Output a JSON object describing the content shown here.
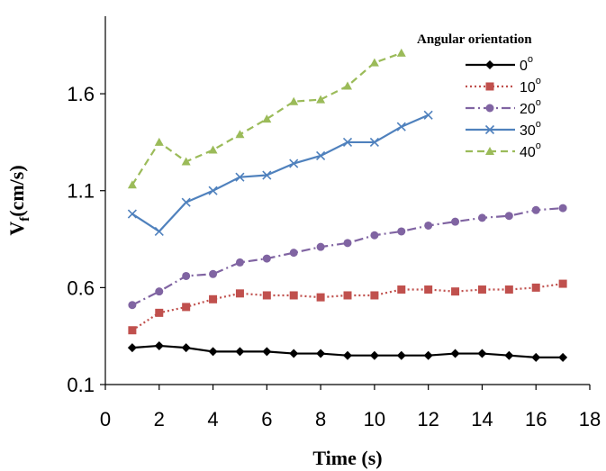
{
  "chart_data": {
    "type": "line",
    "title": "",
    "xlabel": "Time (s)",
    "ylabel": "V",
    "ylabel_subscript": "f",
    "ylabel_unit": "(cm/s)",
    "xlim": [
      0,
      18
    ],
    "ylim": [
      0.1,
      2.0
    ],
    "xticks": [
      0,
      2,
      4,
      6,
      8,
      10,
      12,
      14,
      16,
      18
    ],
    "yticks": [
      0.1,
      0.6,
      1.1,
      1.6
    ],
    "ytick_labels": [
      "0.1",
      "0.6",
      "1.1",
      "1.6"
    ],
    "grid": false,
    "legend": {
      "title": "Angular orientation",
      "position": "top-right",
      "degree_symbol": "o"
    },
    "series": [
      {
        "name": "0",
        "color": "#000000",
        "line_style": "solid",
        "marker": "diamond",
        "x": [
          1,
          2,
          3,
          4,
          5,
          6,
          7,
          8,
          9,
          10,
          11,
          12,
          13,
          14,
          15,
          16,
          17
        ],
        "y": [
          0.29,
          0.3,
          0.29,
          0.27,
          0.27,
          0.27,
          0.26,
          0.26,
          0.25,
          0.25,
          0.25,
          0.25,
          0.26,
          0.26,
          0.25,
          0.24,
          0.24
        ]
      },
      {
        "name": "10",
        "color": "#c0504d",
        "line_style": "dotted",
        "marker": "square",
        "x": [
          1,
          2,
          3,
          4,
          5,
          6,
          7,
          8,
          9,
          10,
          11,
          12,
          13,
          14,
          15,
          16,
          17
        ],
        "y": [
          0.38,
          0.47,
          0.5,
          0.54,
          0.57,
          0.56,
          0.56,
          0.55,
          0.56,
          0.56,
          0.59,
          0.59,
          0.58,
          0.59,
          0.59,
          0.6,
          0.62
        ]
      },
      {
        "name": "20",
        "color": "#8064a2",
        "line_style": "dashdot",
        "marker": "circle",
        "x": [
          1,
          2,
          3,
          4,
          5,
          6,
          7,
          8,
          9,
          10,
          11,
          12,
          13,
          14,
          15,
          16,
          17
        ],
        "y": [
          0.51,
          0.58,
          0.66,
          0.67,
          0.73,
          0.75,
          0.78,
          0.81,
          0.83,
          0.87,
          0.89,
          0.92,
          0.94,
          0.96,
          0.97,
          1.0,
          1.01
        ]
      },
      {
        "name": "30",
        "color": "#4f81bd",
        "line_style": "solid",
        "marker": "x",
        "x": [
          1,
          2,
          3,
          4,
          5,
          6,
          7,
          8,
          9,
          10,
          11,
          12
        ],
        "y": [
          0.98,
          0.89,
          1.04,
          1.1,
          1.17,
          1.18,
          1.24,
          1.28,
          1.35,
          1.35,
          1.43,
          1.49
        ]
      },
      {
        "name": "40",
        "color": "#9bbb59",
        "line_style": "dashed",
        "marker": "triangle",
        "x": [
          1,
          2,
          3,
          4,
          5,
          6,
          7,
          8,
          9,
          10,
          11
        ],
        "y": [
          1.13,
          1.35,
          1.25,
          1.31,
          1.39,
          1.47,
          1.56,
          1.57,
          1.64,
          1.76,
          1.81
        ]
      }
    ]
  }
}
